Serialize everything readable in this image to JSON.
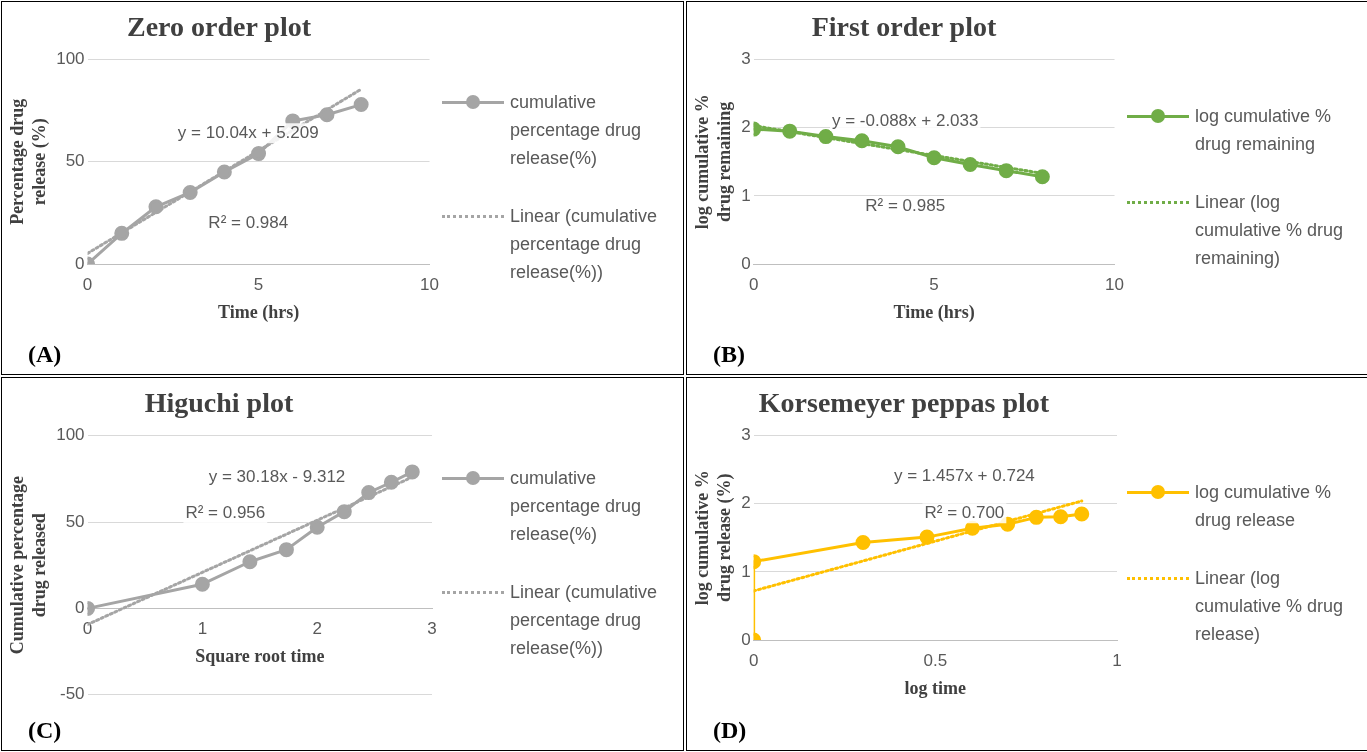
{
  "chart_data": [
    {
      "type": "line",
      "title": "Zero order plot",
      "xlabel": "Time (hrs)",
      "ylabel": "Percentage drug release (%)",
      "x": [
        0,
        1,
        2,
        3,
        4,
        5,
        6,
        7,
        8
      ],
      "xlim": [
        0,
        10
      ],
      "xticks": [
        0,
        5,
        10
      ],
      "ylim": [
        0,
        100
      ],
      "yticks": [
        0,
        50,
        100
      ],
      "grid": "y",
      "legend": "right",
      "marker": "circle",
      "series": [
        {
          "name": "cumulative percentage drug release(%)",
          "color": "#a5a5a5",
          "values": [
            0,
            15,
            28,
            35,
            45,
            54,
            70,
            73,
            78
          ]
        },
        {
          "name": "Linear (cumulative percentage drug release(%))",
          "color": "#a5a5a5",
          "type": "line",
          "x": [
            0,
            8
          ],
          "values": [
            5.2,
            85.5
          ],
          "line_style": "dotted",
          "marker": "none"
        }
      ],
      "annotations": [
        "y = 10.04x + 5.209",
        "R² = 0.984",
        "(A)"
      ]
    },
    {
      "type": "line",
      "title": "First order plot",
      "xlabel": "Time (hrs)",
      "ylabel": "log cumulative % drug remaining",
      "x": [
        0,
        1,
        2,
        3,
        4,
        5,
        6,
        7,
        8
      ],
      "xlim": [
        0,
        10
      ],
      "xticks": [
        0,
        5,
        10
      ],
      "ylim": [
        0,
        3
      ],
      "yticks": [
        0,
        1,
        2,
        3
      ],
      "grid": "y",
      "legend": "right",
      "marker": "circle",
      "series": [
        {
          "name": "log cumulative % drug remaining",
          "color": "#70ad47",
          "values": [
            1.98,
            1.95,
            1.87,
            1.81,
            1.72,
            1.56,
            1.46,
            1.37,
            1.28
          ]
        },
        {
          "name": "Linear (log cumulative % drug remaining)",
          "color": "#70ad47",
          "type": "line",
          "x": [
            0,
            8
          ],
          "values": [
            2.03,
            1.33
          ],
          "line_style": "dotted",
          "marker": "none"
        }
      ],
      "annotations": [
        "y = -0.088x + 2.033",
        "R² = 0.985",
        "(B)"
      ]
    },
    {
      "type": "line",
      "title": "Higuchi plot",
      "xlabel": "Square root time",
      "ylabel": "Cumulative percentage drug released",
      "x": [
        0,
        1,
        1.414,
        1.732,
        2,
        2.236,
        2.449,
        2.646,
        2.828
      ],
      "xlim": [
        0,
        3
      ],
      "xticks": [
        0,
        1,
        2,
        3
      ],
      "ylim": [
        -50,
        100
      ],
      "yticks": [
        -50,
        0,
        50,
        100
      ],
      "grid": "y",
      "legend": "right",
      "marker": "circle",
      "series": [
        {
          "name": "cumulative percentage drug release(%)",
          "color": "#a5a5a5",
          "values": [
            0,
            14,
            27,
            34,
            47,
            56,
            67,
            73,
            79
          ]
        },
        {
          "name": "Linear (cumulative percentage drug release(%))",
          "color": "#a5a5a5",
          "type": "line",
          "x": [
            0,
            2.828
          ],
          "values": [
            -9.3,
            76
          ],
          "line_style": "dotted",
          "marker": "none"
        }
      ],
      "annotations": [
        "y = 30.18x - 9.312",
        "R² = 0.956",
        "(C)"
      ]
    },
    {
      "type": "line",
      "title": "Korsemeyer peppas plot",
      "xlabel": "log time",
      "ylabel": "log cumulative % drug release (%)",
      "x": [
        0,
        0,
        0.301,
        0.477,
        0.602,
        0.699,
        0.778,
        0.845,
        0.903
      ],
      "xlim": [
        0,
        1
      ],
      "xticks": [
        0,
        0.5,
        1
      ],
      "ylim": [
        0,
        3
      ],
      "yticks": [
        0,
        1,
        2,
        3
      ],
      "grid": "y",
      "legend": "right",
      "marker": "circle",
      "series": [
        {
          "name": "log cumulative % drug release",
          "color": "#ffc000",
          "values": [
            0,
            1.15,
            1.43,
            1.51,
            1.64,
            1.7,
            1.8,
            1.81,
            1.85
          ]
        },
        {
          "name": "Linear (log cumulative % drug release)",
          "color": "#ffc000",
          "type": "line",
          "x": [
            0,
            0.903
          ],
          "values": [
            0.72,
            2.04
          ],
          "line_style": "dotted",
          "marker": "none"
        }
      ],
      "annotations": [
        "y = 1.457x + 0.724",
        "R² = 0.700",
        "(D)"
      ]
    }
  ]
}
